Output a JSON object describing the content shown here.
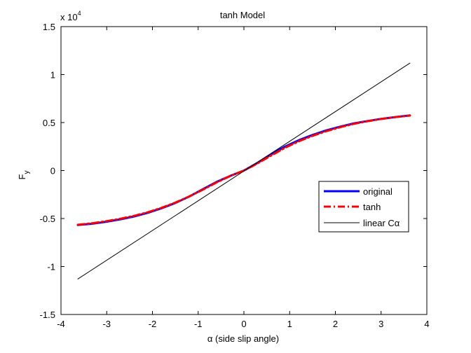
{
  "chart_data": {
    "type": "line",
    "title": "tanh Model",
    "xlabel": "α (side slip angle)",
    "ylabel_main": "F",
    "ylabel_sub": "y",
    "y_scale_prefix": "x 10",
    "y_scale_exponent": "4",
    "xlim": [
      -4,
      4
    ],
    "ylim": [
      -1.5,
      1.5
    ],
    "xticks": [
      -4,
      -3,
      -2,
      -1,
      0,
      1,
      2,
      3,
      4
    ],
    "xtick_labels": [
      "-4",
      "-3",
      "-2",
      "-1",
      "0",
      "1",
      "2",
      "3",
      "4"
    ],
    "yticks": [
      -1.5,
      -1,
      -0.5,
      0,
      0.5,
      1,
      1.5
    ],
    "ytick_labels": [
      "-1.5",
      "-1",
      "-0.5",
      "0",
      "0.5",
      "1",
      "1.5"
    ],
    "grid": false,
    "legend_position": "right, slightly below center",
    "series": [
      {
        "name": "original",
        "color": "#0000ff",
        "style": "solid-thick",
        "x": [
          -3.63,
          -3.3,
          -3.0,
          -2.7,
          -2.4,
          -2.1,
          -1.8,
          -1.5,
          -1.2,
          -0.9,
          -0.6,
          -0.3,
          0.0,
          0.3,
          0.6,
          0.9,
          1.2,
          1.5,
          1.8,
          2.1,
          2.4,
          2.7,
          3.0,
          3.3,
          3.63
        ],
        "y": [
          -0.568,
          -0.553,
          -0.533,
          -0.508,
          -0.478,
          -0.44,
          -0.393,
          -0.338,
          -0.272,
          -0.195,
          -0.119,
          -0.056,
          0.0,
          0.081,
          0.171,
          0.25,
          0.316,
          0.371,
          0.418,
          0.457,
          0.491,
          0.516,
          0.539,
          0.557,
          0.575
        ]
      },
      {
        "name": "tanh",
        "color": "#ff0000",
        "style": "dashdot-thick",
        "x": [
          -3.63,
          -3.3,
          -3.0,
          -2.7,
          -2.4,
          -2.1,
          -1.8,
          -1.5,
          -1.2,
          -0.9,
          -0.6,
          -0.3,
          0.0,
          0.3,
          0.6,
          0.9,
          1.2,
          1.5,
          1.8,
          2.1,
          2.4,
          2.7,
          3.0,
          3.3,
          3.63
        ],
        "y": [
          -0.565,
          -0.548,
          -0.527,
          -0.502,
          -0.472,
          -0.434,
          -0.388,
          -0.334,
          -0.271,
          -0.2,
          -0.124,
          -0.057,
          0.0,
          0.075,
          0.158,
          0.238,
          0.305,
          0.362,
          0.41,
          0.451,
          0.486,
          0.514,
          0.537,
          0.556,
          0.573
        ]
      },
      {
        "name": "linear Cα",
        "color": "#000000",
        "style": "solid-thin",
        "x": [
          -3.63,
          3.63
        ],
        "y": [
          -1.13,
          1.12
        ]
      }
    ]
  }
}
